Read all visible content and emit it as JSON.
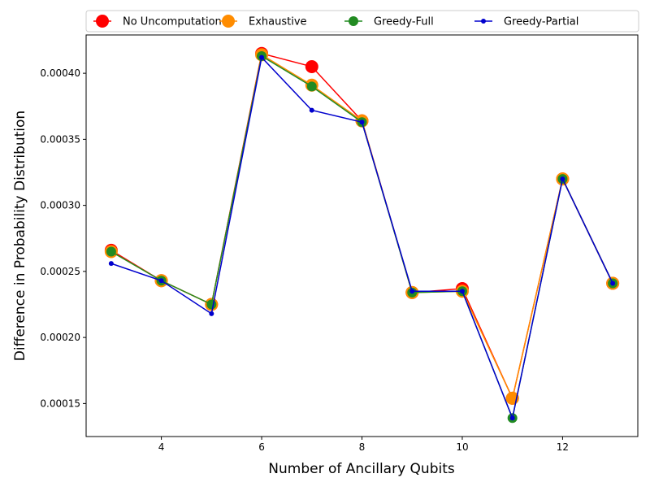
{
  "chart_data": {
    "type": "line",
    "title": "",
    "xlabel": "Number of Ancillary Qubits",
    "ylabel": "Difference in Probability Distribution",
    "x": [
      3,
      4,
      5,
      6,
      7,
      8,
      9,
      10,
      11,
      12,
      13
    ],
    "xlim": [
      2.5,
      13.5
    ],
    "ylim": [
      0.000125,
      0.000429
    ],
    "xticks": [
      4,
      6,
      8,
      10,
      12
    ],
    "yticks": [
      0.00015,
      0.0002,
      0.00025,
      0.0003,
      0.00035,
      0.0004
    ],
    "ytick_labels": [
      "0.00015",
      "0.00020",
      "0.00025",
      "0.00030",
      "0.00035",
      "0.00040"
    ],
    "grid": false,
    "legend_position": "top",
    "series": [
      {
        "name": "No Uncomputation",
        "color": "#ff0000",
        "marker_size": "large",
        "values": [
          0.000266,
          0.000243,
          0.000225,
          0.000415,
          0.000405,
          0.000364,
          0.000234,
          0.000237,
          0.000154,
          0.00032,
          0.000241
        ]
      },
      {
        "name": "Exhaustive",
        "color": "#ff8c00",
        "marker_size": "large",
        "values": [
          0.000265,
          0.000243,
          0.000225,
          0.000414,
          0.000391,
          0.000364,
          0.000234,
          0.000235,
          0.000154,
          0.00032,
          0.000241
        ]
      },
      {
        "name": "Greedy-Full",
        "color": "#228b22",
        "marker_size": "medium",
        "values": [
          0.000265,
          0.000243,
          0.000225,
          0.000413,
          0.00039,
          0.000363,
          0.000234,
          0.000235,
          0.000139,
          0.00032,
          0.000241
        ]
      },
      {
        "name": "Greedy-Partial",
        "color": "#0000cd",
        "marker_size": "small",
        "values": [
          0.000256,
          0.000243,
          0.000218,
          0.000412,
          0.000372,
          0.000363,
          0.000235,
          0.000235,
          0.000139,
          0.00032,
          0.000241
        ]
      }
    ]
  }
}
